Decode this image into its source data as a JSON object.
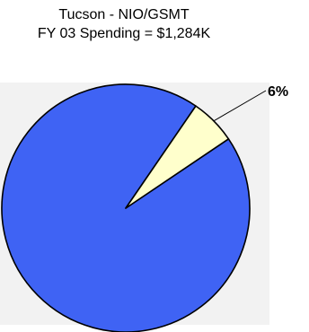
{
  "chart_data": {
    "type": "pie",
    "title": "Tucson - NIO/GSMT",
    "subtitle": "FY 03 Spending = $1,284K",
    "slices": [
      {
        "value": 94,
        "color": "#3f63f4"
      },
      {
        "value": 6,
        "label": "6%",
        "color": "#ffffcc"
      }
    ],
    "plot_background": "#f2f2f2",
    "legend": "none"
  }
}
